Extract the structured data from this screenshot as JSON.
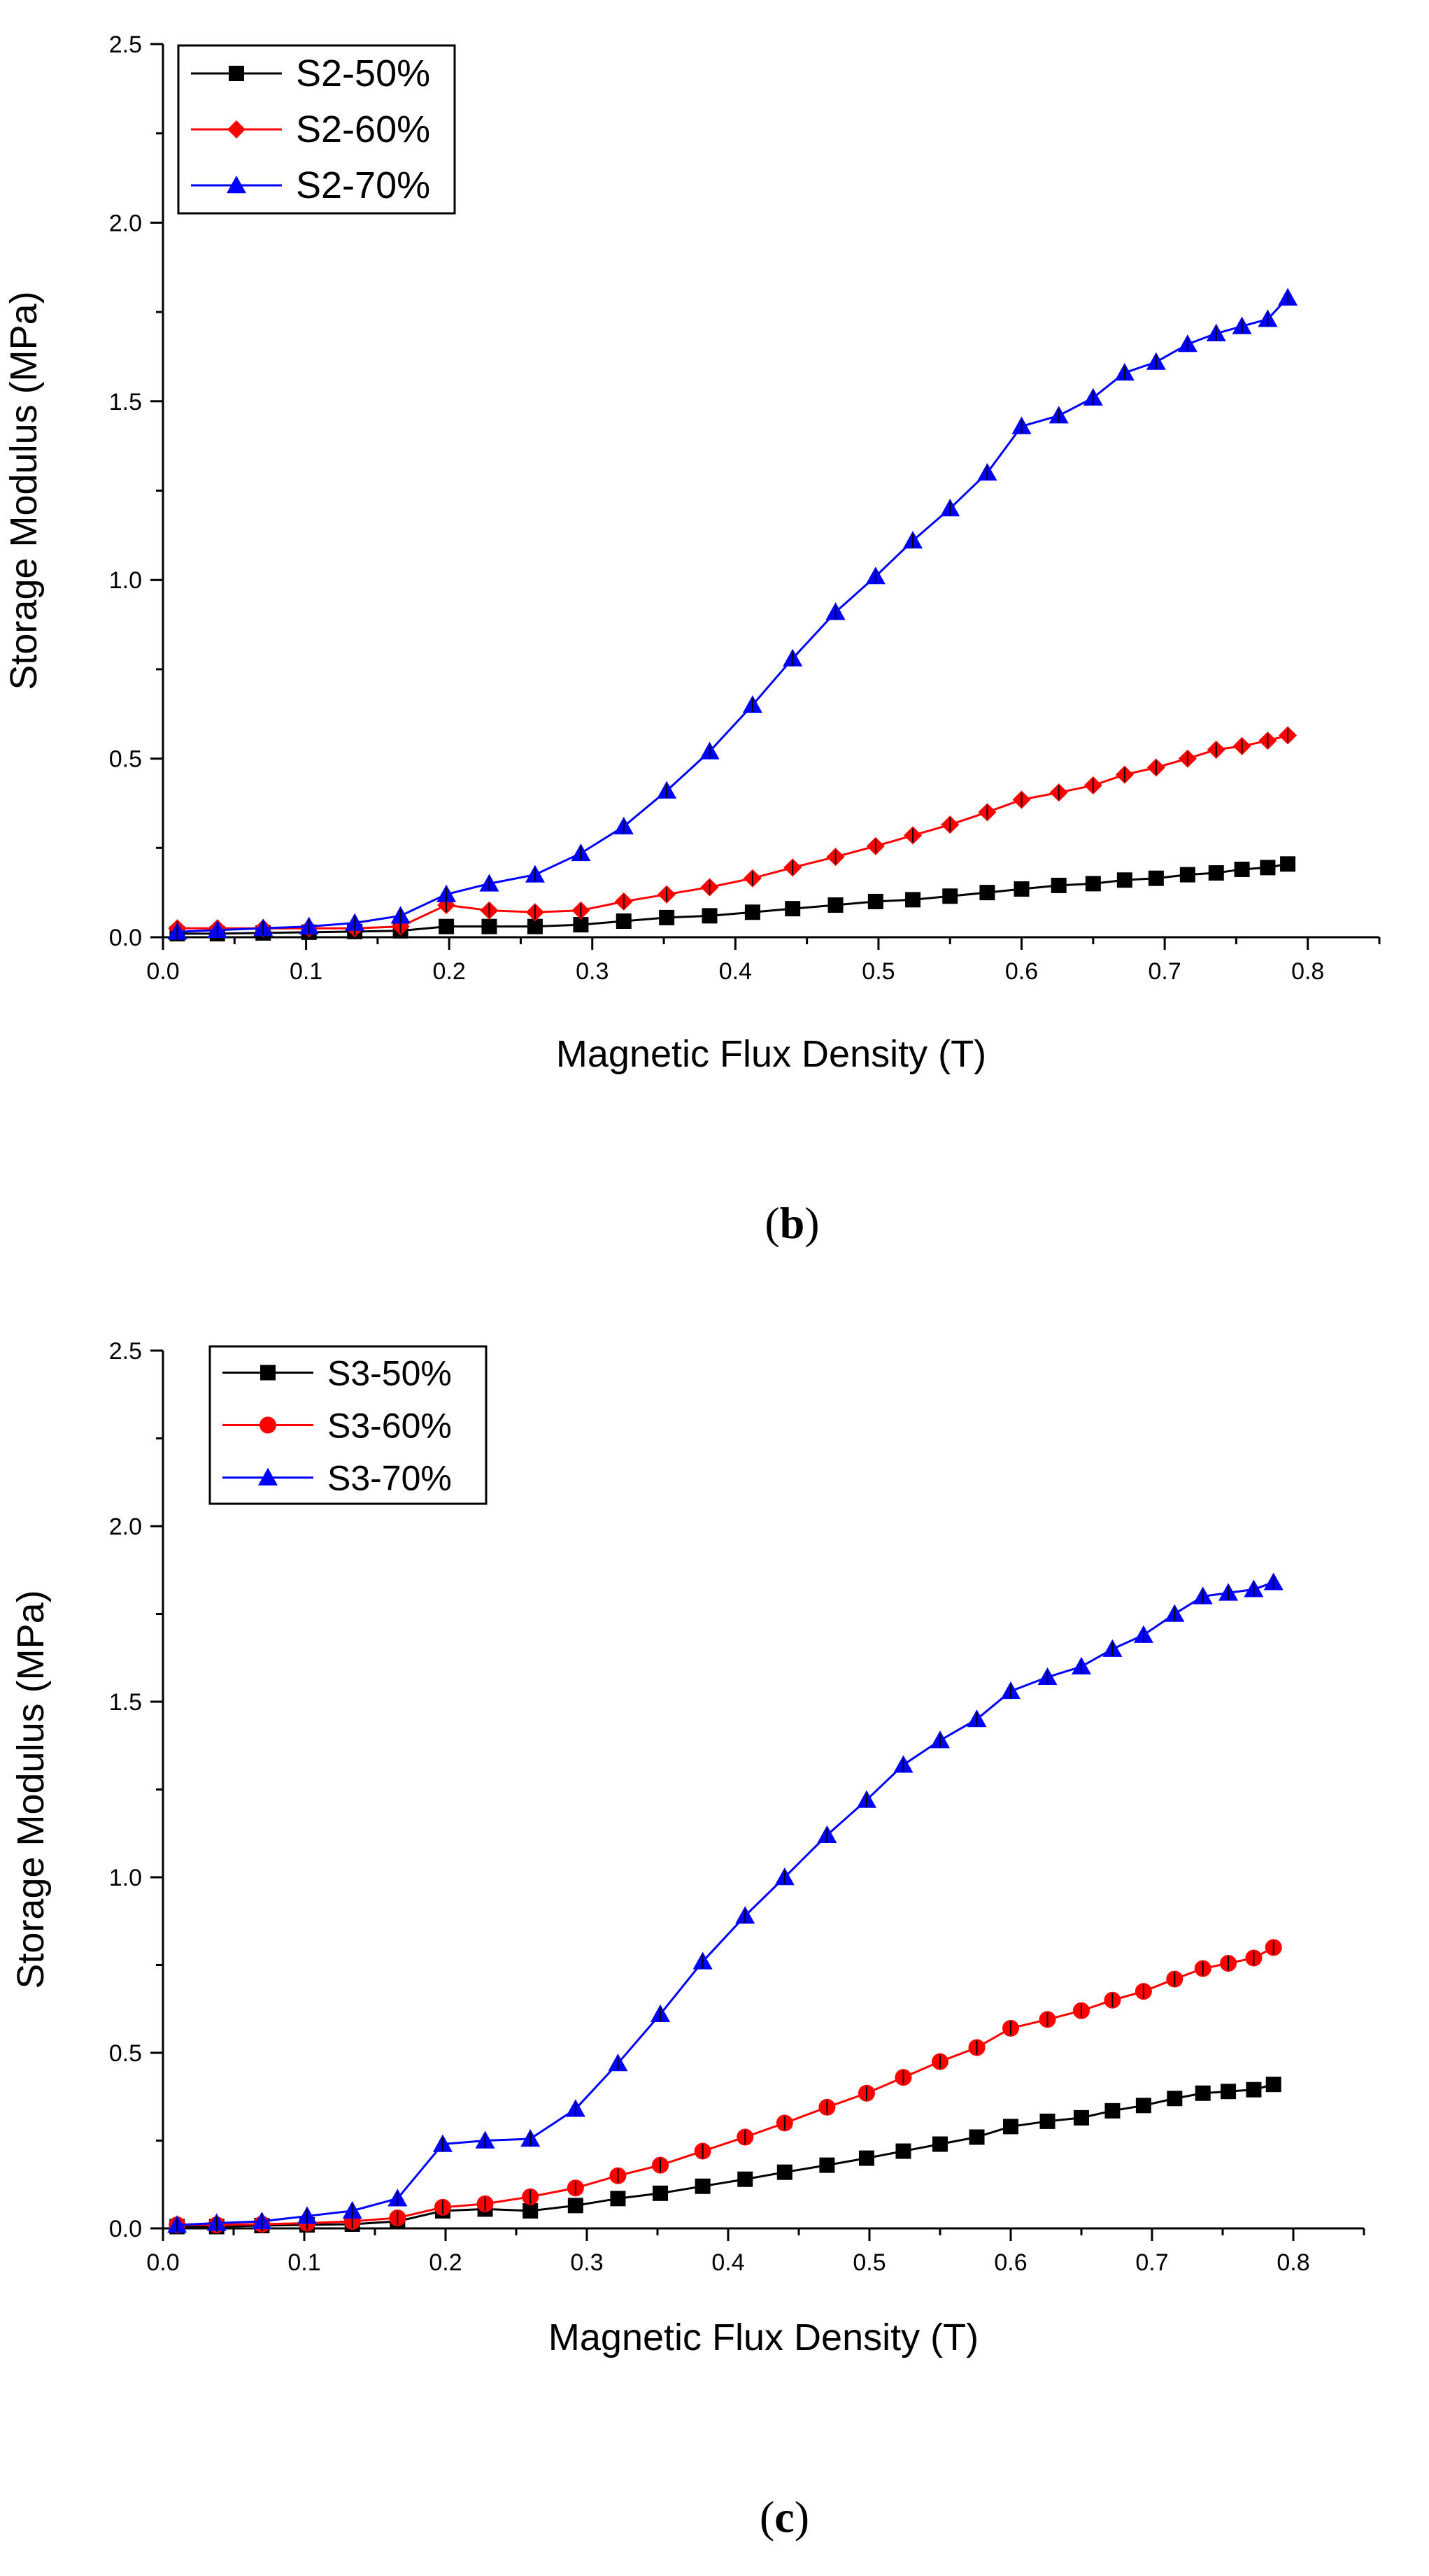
{
  "chart_data": [
    {
      "type": "line",
      "panel_label": "b",
      "xlabel": "Magnetic Flux Density (T)",
      "ylabel": "Storage Modulus (MPa)",
      "xlim": [
        0,
        0.85
      ],
      "ylim": [
        0,
        2.5
      ],
      "xticks": [
        "0.0",
        "0.1",
        "0.2",
        "0.3",
        "0.4",
        "0.5",
        "0.6",
        "0.7",
        "0.8"
      ],
      "yticks": [
        "0.0",
        "0.5",
        "1.0",
        "1.5",
        "2.0",
        "2.5"
      ],
      "legend_position": "top-left",
      "grid": false,
      "x": [
        0.01,
        0.038,
        0.07,
        0.102,
        0.134,
        0.166,
        0.198,
        0.228,
        0.26,
        0.292,
        0.322,
        0.352,
        0.382,
        0.412,
        0.44,
        0.47,
        0.498,
        0.524,
        0.55,
        0.576,
        0.6,
        0.626,
        0.65,
        0.672,
        0.694,
        0.716,
        0.736,
        0.754,
        0.772,
        0.786
      ],
      "series": [
        {
          "name": "S2-50%",
          "color": "#000000",
          "marker": "square",
          "values": [
            0.01,
            0.01,
            0.012,
            0.014,
            0.016,
            0.018,
            0.03,
            0.03,
            0.03,
            0.035,
            0.045,
            0.055,
            0.06,
            0.07,
            0.08,
            0.09,
            0.1,
            0.105,
            0.115,
            0.125,
            0.135,
            0.145,
            0.15,
            0.16,
            0.165,
            0.175,
            0.18,
            0.19,
            0.195,
            0.205
          ]
        },
        {
          "name": "S2-60%",
          "color": "#ff0000",
          "marker": "diamond",
          "values": [
            0.025,
            0.025,
            0.025,
            0.025,
            0.025,
            0.03,
            0.09,
            0.075,
            0.07,
            0.075,
            0.1,
            0.12,
            0.14,
            0.165,
            0.195,
            0.225,
            0.255,
            0.285,
            0.315,
            0.35,
            0.385,
            0.405,
            0.425,
            0.455,
            0.475,
            0.5,
            0.525,
            0.535,
            0.55,
            0.565
          ]
        },
        {
          "name": "S2-70%",
          "color": "#0000ff",
          "marker": "triangle",
          "values": [
            0.015,
            0.02,
            0.025,
            0.03,
            0.04,
            0.06,
            0.12,
            0.15,
            0.175,
            0.235,
            0.31,
            0.41,
            0.52,
            0.65,
            0.78,
            0.91,
            1.01,
            1.11,
            1.2,
            1.3,
            1.43,
            1.46,
            1.51,
            1.58,
            1.61,
            1.66,
            1.69,
            1.71,
            1.73,
            1.79
          ]
        }
      ]
    },
    {
      "type": "line",
      "panel_label": "c",
      "xlabel": "Magnetic Flux Density (T)",
      "ylabel": "Storage Modulus (MPa)",
      "xlim": [
        0,
        0.85
      ],
      "ylim": [
        0,
        2.5
      ],
      "xticks": [
        "0.0",
        "0.1",
        "0.2",
        "0.3",
        "0.4",
        "0.5",
        "0.6",
        "0.7",
        "0.8"
      ],
      "yticks": [
        "0.0",
        "0.5",
        "1.0",
        "1.5",
        "2.0",
        "2.5"
      ],
      "legend_position": "top-left",
      "grid": false,
      "x": [
        0.01,
        0.038,
        0.07,
        0.102,
        0.134,
        0.166,
        0.198,
        0.228,
        0.26,
        0.292,
        0.322,
        0.352,
        0.382,
        0.412,
        0.44,
        0.47,
        0.498,
        0.524,
        0.55,
        0.576,
        0.6,
        0.626,
        0.65,
        0.672,
        0.694,
        0.716,
        0.736,
        0.754,
        0.772,
        0.786
      ],
      "series": [
        {
          "name": "S3-50%",
          "color": "#000000",
          "marker": "square",
          "values": [
            0.005,
            0.005,
            0.008,
            0.01,
            0.012,
            0.02,
            0.05,
            0.055,
            0.05,
            0.065,
            0.085,
            0.1,
            0.12,
            0.14,
            0.16,
            0.18,
            0.2,
            0.22,
            0.24,
            0.26,
            0.29,
            0.305,
            0.315,
            0.335,
            0.35,
            0.37,
            0.385,
            0.39,
            0.395,
            0.41
          ]
        },
        {
          "name": "S3-60%",
          "color": "#ff0000",
          "marker": "circle",
          "values": [
            0.01,
            0.01,
            0.012,
            0.015,
            0.02,
            0.03,
            0.06,
            0.07,
            0.09,
            0.115,
            0.15,
            0.18,
            0.22,
            0.26,
            0.3,
            0.345,
            0.385,
            0.43,
            0.475,
            0.515,
            0.57,
            0.595,
            0.62,
            0.65,
            0.675,
            0.71,
            0.74,
            0.755,
            0.77,
            0.8
          ]
        },
        {
          "name": "S3-70%",
          "color": "#0000ff",
          "marker": "triangle",
          "values": [
            0.01,
            0.015,
            0.02,
            0.035,
            0.05,
            0.085,
            0.24,
            0.25,
            0.255,
            0.34,
            0.47,
            0.61,
            0.76,
            0.89,
            1.0,
            1.12,
            1.22,
            1.32,
            1.39,
            1.45,
            1.53,
            1.57,
            1.6,
            1.65,
            1.69,
            1.75,
            1.8,
            1.81,
            1.82,
            1.84
          ]
        }
      ]
    }
  ]
}
